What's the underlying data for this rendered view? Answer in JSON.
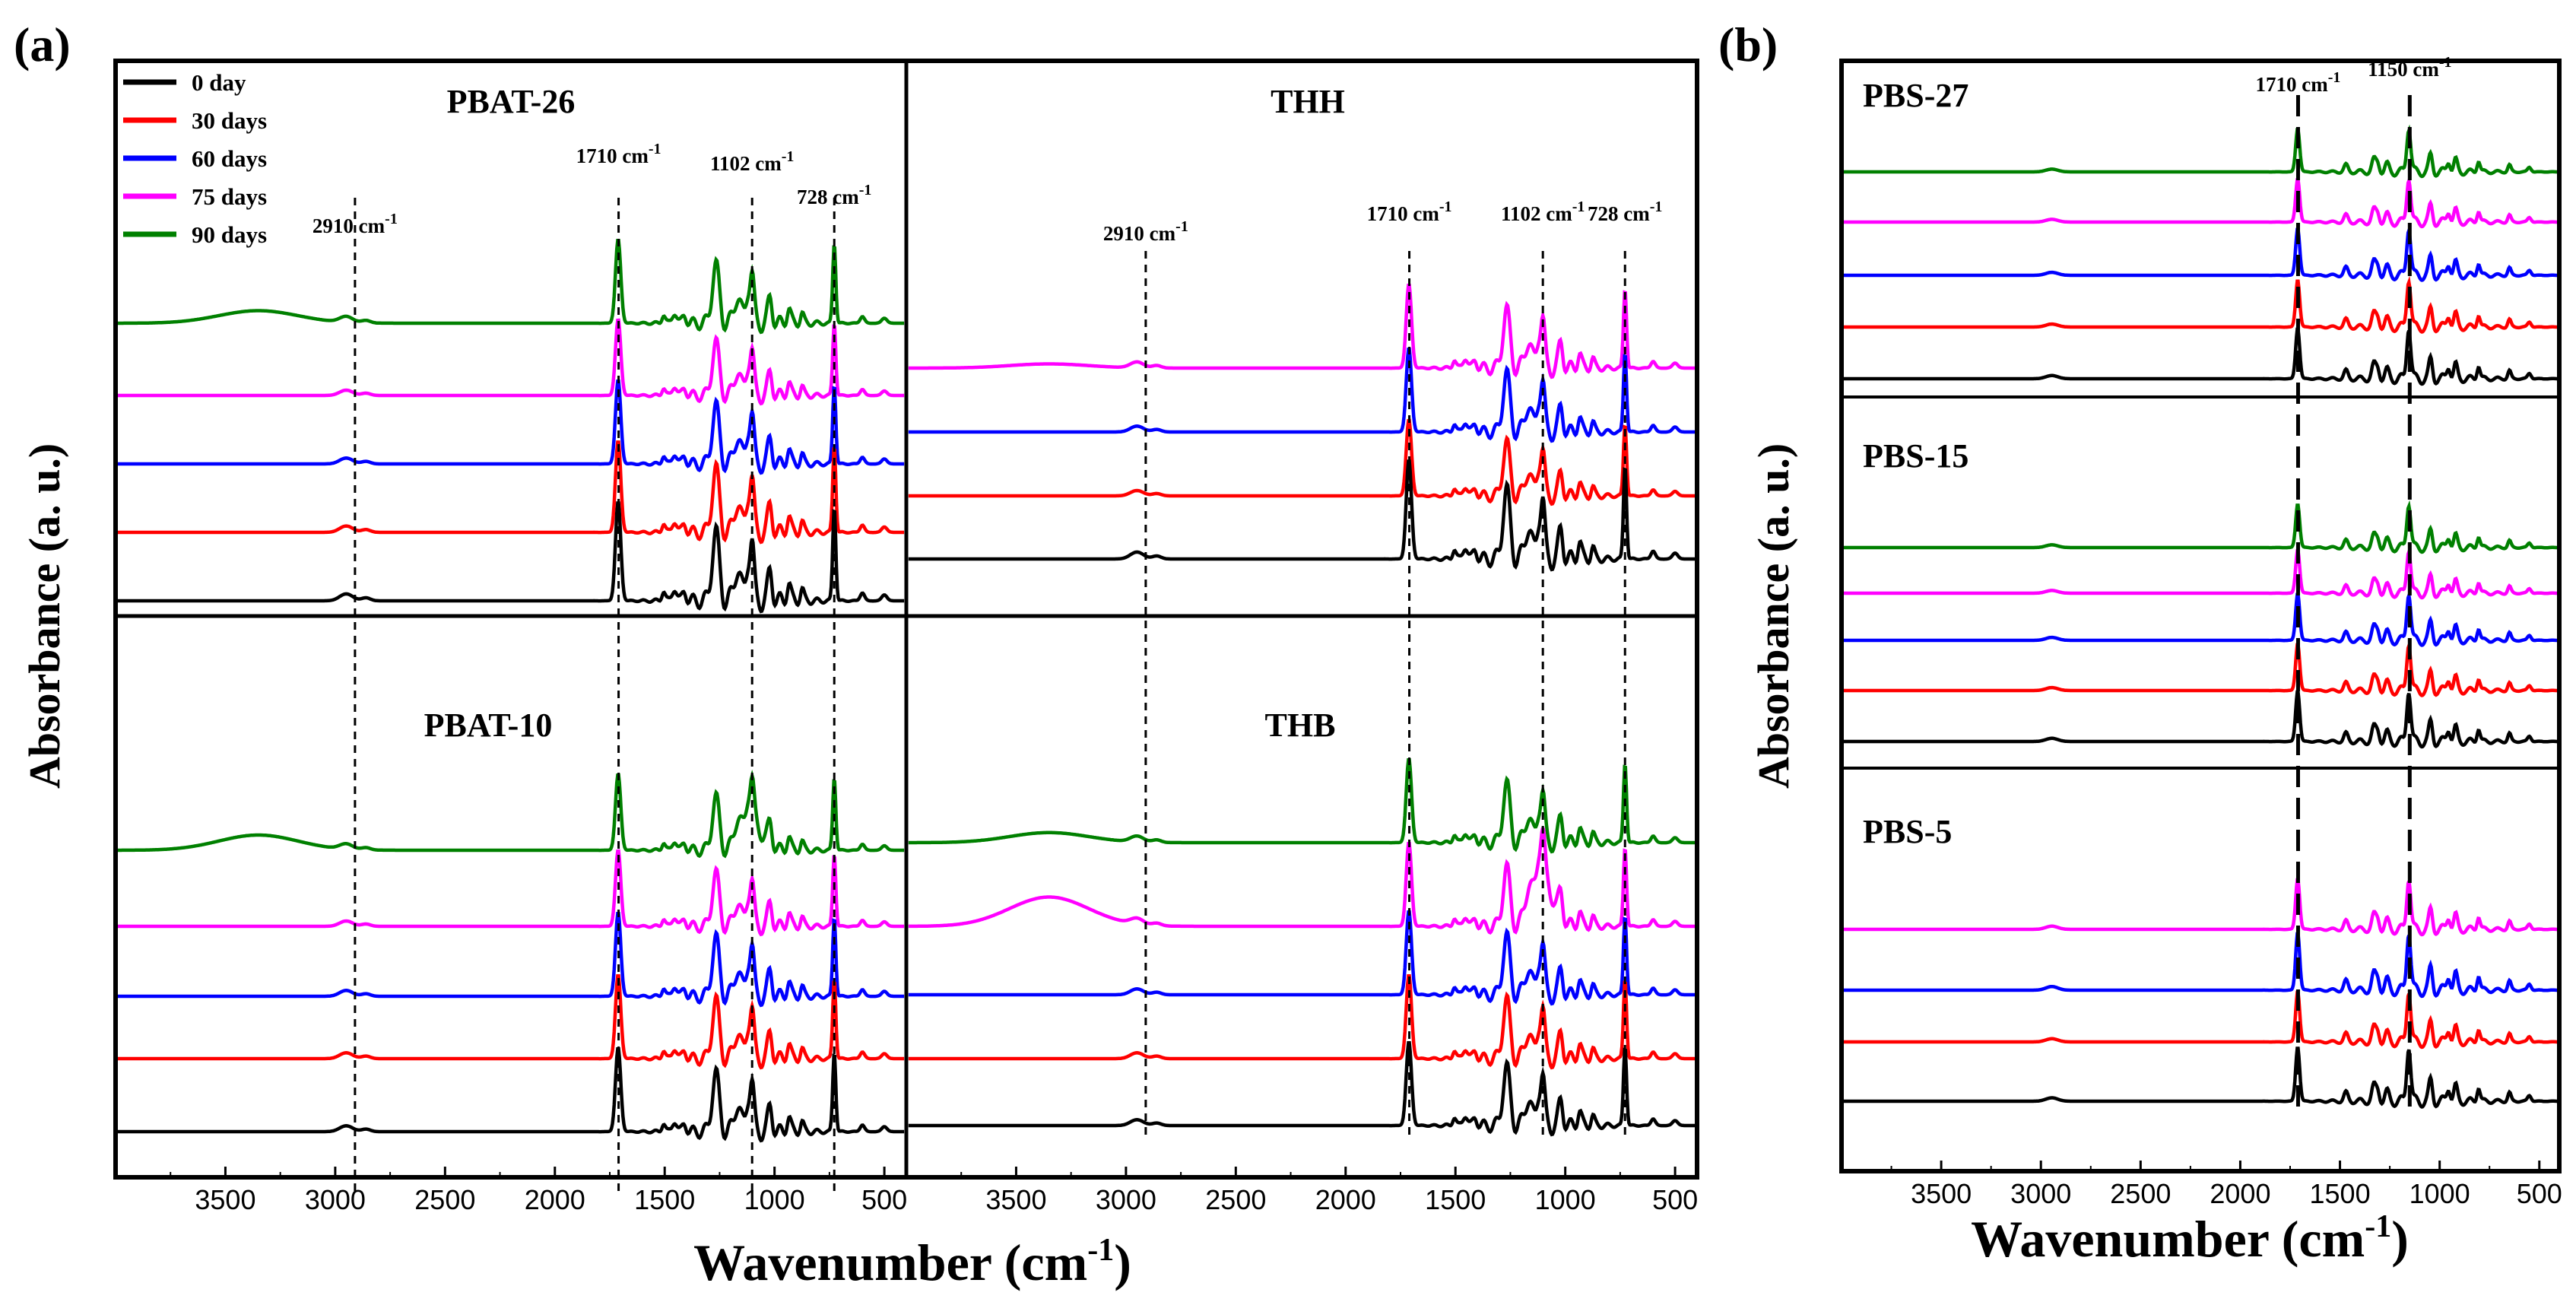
{
  "figure": {
    "panel_a_label": "(a)",
    "panel_b_label": "(b)",
    "xlabel": "Wavenumber (cm",
    "xlabel_sup": "-1",
    "xlabel_close": ")",
    "ylabel": "Absorbance (a. u.)"
  },
  "legend": [
    {
      "label": "0 day",
      "color": "#000000"
    },
    {
      "label": "30 days",
      "color": "#ff0000"
    },
    {
      "label": "60 days",
      "color": "#0000ff"
    },
    {
      "label": "75 days",
      "color": "#ff00ff"
    },
    {
      "label": "90 days",
      "color": "#008000"
    }
  ],
  "chart_data": [
    {
      "id": "pbat26",
      "type": "line",
      "title": "PBAT-26",
      "xlim": [
        4000,
        400
      ],
      "xticks": [
        3500,
        3000,
        2500,
        2000,
        1500,
        1000,
        500
      ],
      "series": [
        "0 day",
        "30 days",
        "60 days",
        "75 days",
        "90 days"
      ],
      "annotations": [
        {
          "x": 2910,
          "text": "2910 cm",
          "sup": "-1"
        },
        {
          "x": 1710,
          "text": "1710 cm",
          "sup": "-1"
        },
        {
          "x": 1102,
          "text": "1102 cm",
          "sup": "-1"
        },
        {
          "x": 728,
          "text": "728 cm",
          "sup": "-1"
        }
      ]
    },
    {
      "id": "thh",
      "type": "line",
      "title": "THH",
      "xlim": [
        4000,
        400
      ],
      "xticks": [
        3500,
        3000,
        2500,
        2000,
        1500,
        1000,
        500
      ],
      "series": [
        "0 day",
        "30 days",
        "60 days",
        "75 days"
      ],
      "annotations": [
        {
          "x": 2910,
          "text": "2910 cm",
          "sup": "-1"
        },
        {
          "x": 1710,
          "text": "1710 cm",
          "sup": "-1"
        },
        {
          "x": 1102,
          "text": "1102 cm",
          "sup": "-1"
        },
        {
          "x": 728,
          "text": "728 cm",
          "sup": "-1"
        }
      ]
    },
    {
      "id": "pbat10",
      "type": "line",
      "title": "PBAT-10",
      "xlim": [
        4000,
        400
      ],
      "xticks": [
        3500,
        3000,
        2500,
        2000,
        1500,
        1000,
        500
      ],
      "series": [
        "0 day",
        "30 days",
        "60 days",
        "75 days",
        "90 days"
      ],
      "annotations": []
    },
    {
      "id": "thb",
      "type": "line",
      "title": "THB",
      "xlim": [
        4000,
        400
      ],
      "xticks": [
        3500,
        3000,
        2500,
        2000,
        1500,
        1000,
        500
      ],
      "series": [
        "0 day",
        "30 days",
        "60 days",
        "75 days",
        "90 days"
      ],
      "annotations": []
    },
    {
      "id": "pbs",
      "type": "line",
      "title": "PBS-27 / PBS-15 / PBS-5",
      "xlim": [
        4000,
        400
      ],
      "xticks": [
        3500,
        3000,
        2500,
        2000,
        1500,
        1000,
        500
      ],
      "sub_titles": [
        "PBS-27",
        "PBS-15",
        "PBS-5"
      ],
      "annotations": [
        {
          "x": 1710,
          "text": "1710 cm",
          "sup": "-1"
        },
        {
          "x": 1150,
          "text": "1150 cm",
          "sup": "-1"
        }
      ]
    }
  ]
}
